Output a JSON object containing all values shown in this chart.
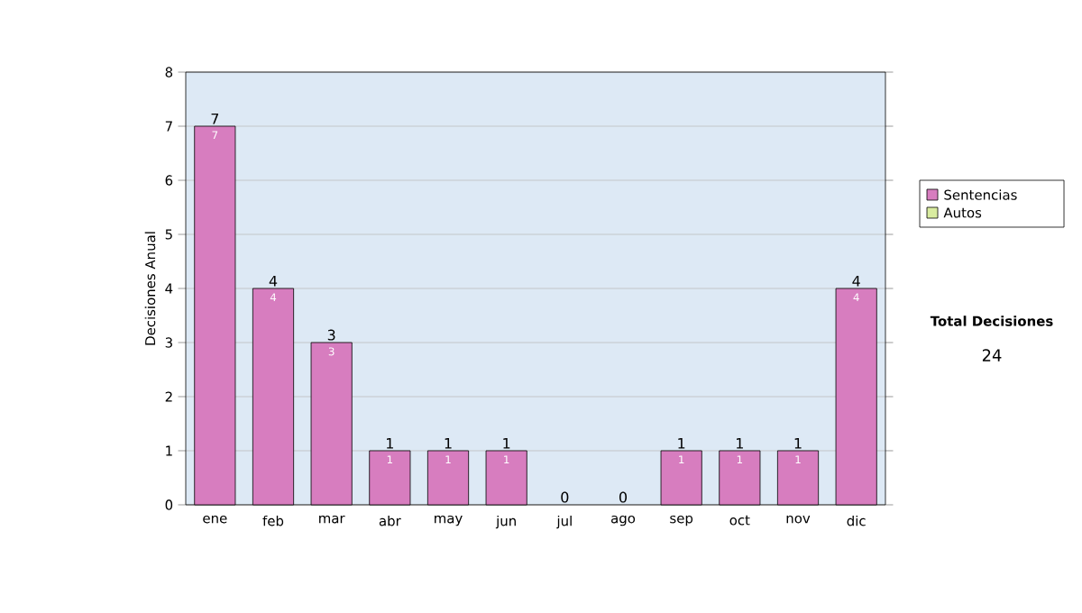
{
  "chart_data": {
    "type": "bar",
    "stacked": true,
    "ylabel": "Decisiones Anual",
    "categories": [
      "ene",
      "feb",
      "mar",
      "abr",
      "may",
      "jun",
      "jul",
      "ago",
      "sep",
      "oct",
      "nov",
      "dic"
    ],
    "series": [
      {
        "name": "Sentencias",
        "color": "#d77dbf",
        "values": [
          7,
          4,
          3,
          1,
          1,
          1,
          0,
          0,
          1,
          1,
          1,
          4
        ],
        "value_labels": [
          "7",
          "4",
          "3",
          "1",
          "1",
          "1",
          null,
          null,
          "1",
          "1",
          "1",
          "4"
        ]
      },
      {
        "name": "Autos",
        "color": "#d9eca0",
        "values": [
          0,
          0,
          0,
          0,
          0,
          0,
          0,
          0,
          0,
          0,
          0,
          0
        ]
      }
    ],
    "totals": [
      "7",
      "4",
      "3",
      "1",
      "1",
      "1",
      "0",
      "0",
      "1",
      "1",
      "1",
      "4"
    ],
    "ylim": [
      0,
      8
    ],
    "yticks": [
      0,
      1,
      2,
      3,
      4,
      5,
      6,
      7,
      8
    ],
    "grid": "y",
    "legend": "right",
    "annotations": [
      "Total Decisiones",
      "24"
    ]
  }
}
